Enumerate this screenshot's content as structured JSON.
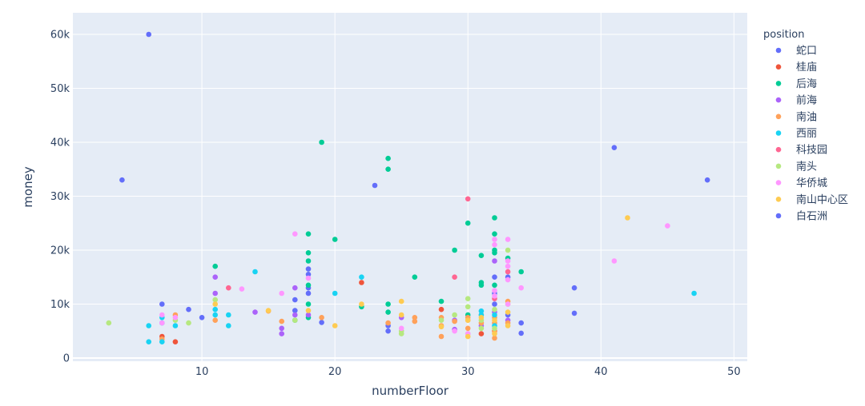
{
  "chart_data": {
    "type": "scatter",
    "title": "",
    "xlabel": "numberFloor",
    "ylabel": "money",
    "xlim": [
      0.3,
      51
    ],
    "ylim": [
      -600,
      64000
    ],
    "x_ticks": [
      10,
      20,
      30,
      40,
      50
    ],
    "y_ticks": [
      0,
      10000,
      20000,
      30000,
      40000,
      50000,
      60000
    ],
    "y_tick_labels": [
      "0",
      "10k",
      "20k",
      "30k",
      "40k",
      "50k",
      "60k"
    ],
    "grid": true,
    "legend_title": "position",
    "legend_position": "right",
    "series": [
      {
        "name": "蛇口",
        "color": "#636efa",
        "points": [
          [
            4,
            33000
          ],
          [
            6,
            60000
          ],
          [
            7,
            10000
          ],
          [
            9,
            9000
          ],
          [
            10,
            7500
          ],
          [
            17,
            10800
          ],
          [
            17,
            8800
          ],
          [
            18,
            16500
          ],
          [
            18,
            15500
          ],
          [
            18,
            13000
          ],
          [
            18,
            12000
          ],
          [
            19,
            6600
          ],
          [
            23,
            32000
          ],
          [
            24,
            6000
          ],
          [
            24,
            5000
          ],
          [
            32,
            15000
          ],
          [
            32,
            12000
          ],
          [
            32,
            10000
          ],
          [
            33,
            15000
          ],
          [
            33,
            8000
          ],
          [
            34,
            6500
          ],
          [
            34,
            4600
          ],
          [
            38,
            13000
          ],
          [
            38,
            8300
          ],
          [
            41,
            39000
          ],
          [
            48,
            33000
          ]
        ]
      },
      {
        "name": "桂庙",
        "color": "#ef553b",
        "points": [
          [
            7,
            4000
          ],
          [
            8,
            3000
          ],
          [
            22,
            14000
          ],
          [
            28,
            9000
          ],
          [
            31,
            4500
          ],
          [
            32,
            5000
          ]
        ]
      },
      {
        "name": "后海",
        "color": "#00cc96",
        "points": [
          [
            11,
            17000
          ],
          [
            17,
            7000
          ],
          [
            18,
            23000
          ],
          [
            18,
            19500
          ],
          [
            18,
            18000
          ],
          [
            18,
            13500
          ],
          [
            18,
            10000
          ],
          [
            18,
            7500
          ],
          [
            19,
            40000
          ],
          [
            20,
            22000
          ],
          [
            22,
            9500
          ],
          [
            24,
            37000
          ],
          [
            24,
            35000
          ],
          [
            24,
            10000
          ],
          [
            24,
            8500
          ],
          [
            26,
            15000
          ],
          [
            28,
            10500
          ],
          [
            29,
            20000
          ],
          [
            30,
            25000
          ],
          [
            30,
            8000
          ],
          [
            31,
            19000
          ],
          [
            31,
            14000
          ],
          [
            31,
            13500
          ],
          [
            32,
            26000
          ],
          [
            32,
            23000
          ],
          [
            32,
            20000
          ],
          [
            32,
            19500
          ],
          [
            32,
            13500
          ],
          [
            33,
            18500
          ],
          [
            34,
            16000
          ]
        ]
      },
      {
        "name": "前海",
        "color": "#ab63fa",
        "points": [
          [
            11,
            15000
          ],
          [
            11,
            12000
          ],
          [
            14,
            8500
          ],
          [
            16,
            5500
          ],
          [
            16,
            4500
          ],
          [
            17,
            13000
          ],
          [
            17,
            8000
          ],
          [
            18,
            8000
          ],
          [
            25,
            7500
          ],
          [
            29,
            7000
          ],
          [
            29,
            5300
          ],
          [
            31,
            6000
          ],
          [
            32,
            18000
          ],
          [
            32,
            8500
          ],
          [
            33,
            7000
          ]
        ]
      },
      {
        "name": "南油",
        "color": "#ffa15a",
        "points": [
          [
            7,
            3500
          ],
          [
            8,
            8000
          ],
          [
            11,
            7000
          ],
          [
            15,
            8700
          ],
          [
            16,
            6800
          ],
          [
            19,
            7500
          ],
          [
            24,
            6500
          ],
          [
            26,
            7500
          ],
          [
            26,
            6800
          ],
          [
            28,
            7500
          ],
          [
            28,
            6000
          ],
          [
            28,
            4000
          ],
          [
            29,
            6800
          ],
          [
            30,
            7500
          ],
          [
            30,
            7000
          ],
          [
            30,
            5500
          ],
          [
            31,
            8000
          ],
          [
            31,
            6500
          ],
          [
            32,
            7500
          ],
          [
            32,
            6500
          ],
          [
            32,
            5000
          ],
          [
            32,
            3700
          ],
          [
            33,
            10500
          ],
          [
            33,
            6500
          ]
        ]
      },
      {
        "name": "西丽",
        "color": "#19d3f3",
        "points": [
          [
            6,
            6000
          ],
          [
            6,
            3000
          ],
          [
            7,
            7500
          ],
          [
            7,
            6500
          ],
          [
            7,
            3000
          ],
          [
            8,
            6000
          ],
          [
            11,
            9000
          ],
          [
            11,
            8000
          ],
          [
            12,
            8000
          ],
          [
            12,
            6000
          ],
          [
            14,
            16000
          ],
          [
            20,
            12000
          ],
          [
            22,
            15000
          ],
          [
            31,
            8700
          ],
          [
            31,
            8000
          ],
          [
            32,
            8000
          ],
          [
            32,
            6000
          ],
          [
            47,
            12000
          ]
        ]
      },
      {
        "name": "科技园",
        "color": "#ff6692",
        "points": [
          [
            12,
            13000
          ],
          [
            29,
            15000
          ],
          [
            30,
            29500
          ],
          [
            32,
            11000
          ],
          [
            33,
            16000
          ]
        ]
      },
      {
        "name": "南头",
        "color": "#b6e880",
        "points": [
          [
            3,
            6500
          ],
          [
            8,
            7000
          ],
          [
            9,
            6500
          ],
          [
            11,
            10800
          ],
          [
            17,
            7000
          ],
          [
            25,
            5000
          ],
          [
            25,
            4500
          ],
          [
            28,
            7000
          ],
          [
            29,
            8000
          ],
          [
            30,
            11000
          ],
          [
            30,
            9500
          ],
          [
            30,
            4500
          ],
          [
            31,
            7000
          ],
          [
            31,
            5500
          ],
          [
            32,
            9000
          ],
          [
            32,
            5500
          ],
          [
            33,
            20000
          ],
          [
            33,
            10000
          ]
        ]
      },
      {
        "name": "华侨城",
        "color": "#ff97ff",
        "points": [
          [
            7,
            8000
          ],
          [
            7,
            6500
          ],
          [
            8,
            7500
          ],
          [
            13,
            12800
          ],
          [
            16,
            12000
          ],
          [
            17,
            23000
          ],
          [
            18,
            14800
          ],
          [
            25,
            5500
          ],
          [
            29,
            5000
          ],
          [
            30,
            4500
          ],
          [
            32,
            22000
          ],
          [
            32,
            21000
          ],
          [
            32,
            12500
          ],
          [
            32,
            11500
          ],
          [
            33,
            22000
          ],
          [
            33,
            18000
          ],
          [
            33,
            17000
          ],
          [
            33,
            14500
          ],
          [
            33,
            10000
          ],
          [
            34,
            13000
          ],
          [
            41,
            18000
          ],
          [
            45,
            24500
          ]
        ]
      },
      {
        "name": "南山中心区",
        "color": "#fecb52",
        "points": [
          [
            11,
            10000
          ],
          [
            15,
            8800
          ],
          [
            18,
            8800
          ],
          [
            20,
            6000
          ],
          [
            22,
            10000
          ],
          [
            25,
            10500
          ],
          [
            25,
            8000
          ],
          [
            28,
            5800
          ],
          [
            30,
            7000
          ],
          [
            30,
            4000
          ],
          [
            31,
            7500
          ],
          [
            32,
            7000
          ],
          [
            32,
            4500
          ],
          [
            33,
            8500
          ],
          [
            33,
            6000
          ],
          [
            42,
            26000
          ]
        ]
      },
      {
        "name": "白石洲",
        "color": "#636efa",
        "points": []
      }
    ]
  }
}
